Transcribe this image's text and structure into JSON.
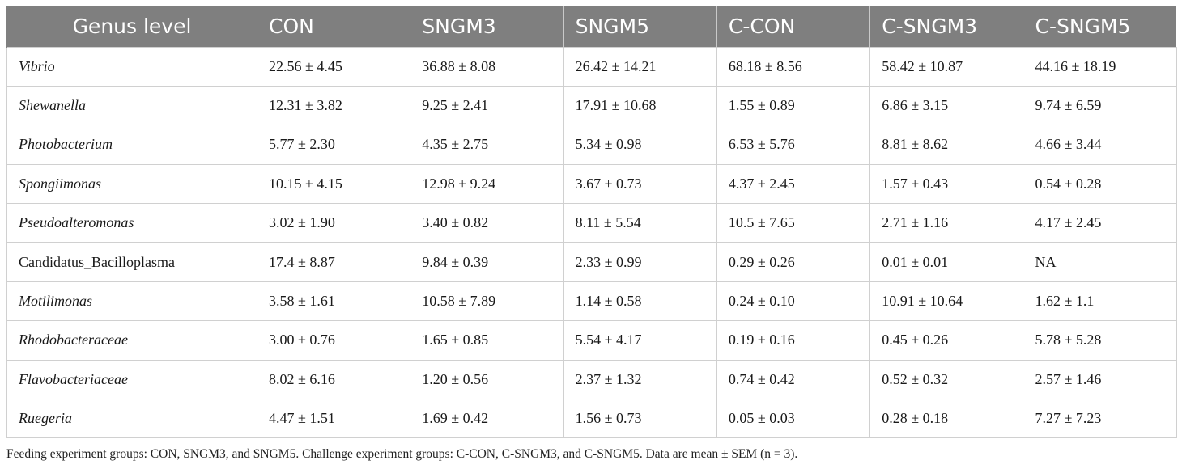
{
  "table": {
    "headers": [
      "Genus level",
      "CON",
      "SNGM3",
      "SNGM5",
      "C-CON",
      "C-SNGM3",
      "C-SNGM5"
    ],
    "rows": [
      {
        "genus": "Vibrio",
        "italic": true,
        "values": [
          "22.56 ± 4.45",
          "36.88 ± 8.08",
          "26.42 ± 14.21",
          "68.18 ± 8.56",
          "58.42 ± 10.87",
          "44.16 ± 18.19"
        ]
      },
      {
        "genus": "Shewanella",
        "italic": true,
        "values": [
          "12.31 ± 3.82",
          "9.25 ± 2.41",
          "17.91 ± 10.68",
          "1.55 ± 0.89",
          "6.86 ± 3.15",
          "9.74 ± 6.59"
        ]
      },
      {
        "genus": "Photobacterium",
        "italic": true,
        "values": [
          "5.77 ± 2.30",
          "4.35 ± 2.75",
          "5.34 ± 0.98",
          "6.53 ± 5.76",
          "8.81 ± 8.62",
          "4.66 ± 3.44"
        ]
      },
      {
        "genus": "Spongiimonas",
        "italic": true,
        "values": [
          "10.15 ± 4.15",
          "12.98 ± 9.24",
          "3.67 ± 0.73",
          "4.37 ± 2.45",
          "1.57 ± 0.43",
          "0.54 ± 0.28"
        ]
      },
      {
        "genus": "Pseudoalteromonas",
        "italic": true,
        "values": [
          "3.02 ± 1.90",
          "3.40 ± 0.82",
          "8.11 ± 5.54",
          "10.5 ± 7.65",
          "2.71 ± 1.16",
          "4.17 ± 2.45"
        ]
      },
      {
        "genus": "Candidatus_Bacilloplasma",
        "italic": false,
        "values": [
          "17.4 ± 8.87",
          "9.84 ± 0.39",
          "2.33 ± 0.99",
          "0.29 ± 0.26",
          "0.01 ± 0.01",
          "NA"
        ]
      },
      {
        "genus": "Motilimonas",
        "italic": true,
        "values": [
          "3.58 ± 1.61",
          "10.58 ± 7.89",
          "1.14 ± 0.58",
          "0.24 ± 0.10",
          "10.91 ± 10.64",
          "1.62 ± 1.1"
        ]
      },
      {
        "genus": "Rhodobacteraceae",
        "italic": true,
        "values": [
          "3.00 ± 0.76",
          "1.65 ± 0.85",
          "5.54 ± 4.17",
          "0.19 ± 0.16",
          "0.45 ± 0.26",
          "5.78 ± 5.28"
        ]
      },
      {
        "genus": "Flavobacteriaceae",
        "italic": true,
        "values": [
          "8.02 ± 6.16",
          "1.20 ± 0.56",
          "2.37 ± 1.32",
          "0.74 ± 0.42",
          "0.52 ± 0.32",
          "2.57 ± 1.46"
        ]
      },
      {
        "genus": "Ruegeria",
        "italic": true,
        "values": [
          "4.47 ± 1.51",
          "1.69 ± 0.42",
          "1.56 ± 0.73",
          "0.05 ± 0.03",
          "0.28 ± 0.18",
          "7.27 ± 7.23"
        ]
      }
    ]
  },
  "footnote": "Feeding experiment groups: CON, SNGM3, and SNGM5. Challenge experiment groups: C-CON, C-SNGM3, and C-SNGM5. Data are mean ± SEM (n = 3)."
}
